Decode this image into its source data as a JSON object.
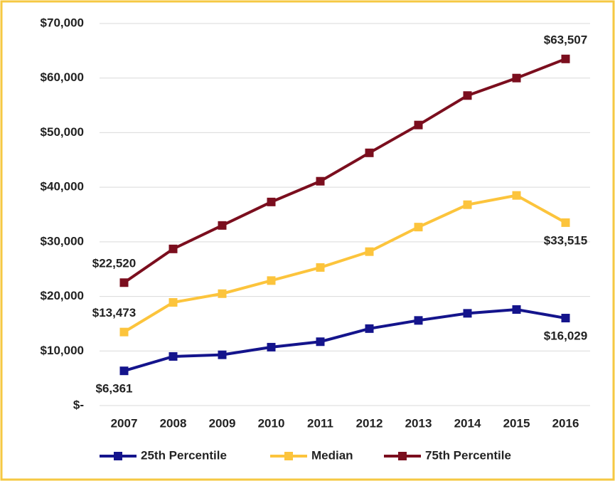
{
  "chart_data": {
    "type": "line",
    "categories": [
      "2007",
      "2008",
      "2009",
      "2010",
      "2011",
      "2012",
      "2013",
      "2014",
      "2015",
      "2016"
    ],
    "series": [
      {
        "name": "25th Percentile",
        "color": "#14148c",
        "values": [
          6361,
          9000,
          9300,
          10700,
          11700,
          14100,
          15600,
          16900,
          17600,
          16029
        ],
        "value_labels": [
          "$6,361",
          null,
          null,
          null,
          null,
          null,
          null,
          null,
          null,
          "$16,029"
        ]
      },
      {
        "name": "Median",
        "color": "#fcc43c",
        "values": [
          13473,
          18900,
          20500,
          22900,
          25300,
          28200,
          32700,
          36800,
          38500,
          33515
        ],
        "value_labels": [
          "$13,473",
          null,
          null,
          null,
          null,
          null,
          null,
          null,
          null,
          "$33,515"
        ]
      },
      {
        "name": "75th Percentile",
        "color": "#7b0e1e",
        "values": [
          22520,
          28700,
          33000,
          37300,
          41100,
          46300,
          51400,
          56800,
          60000,
          63507
        ],
        "value_labels": [
          "$22,520",
          null,
          null,
          null,
          null,
          null,
          null,
          null,
          null,
          "$63,507"
        ]
      }
    ],
    "ylim": [
      0,
      70000
    ],
    "yticks": [
      {
        "value": 0,
        "label": "$-"
      },
      {
        "value": 10000,
        "label": "$10,000"
      },
      {
        "value": 20000,
        "label": "$20,000"
      },
      {
        "value": 30000,
        "label": "$30,000"
      },
      {
        "value": 40000,
        "label": "$40,000"
      },
      {
        "value": 50000,
        "label": "$50,000"
      },
      {
        "value": 60000,
        "label": "$60,000"
      },
      {
        "value": 70000,
        "label": "$70,000"
      }
    ],
    "grid": true,
    "legend": "bottom"
  }
}
